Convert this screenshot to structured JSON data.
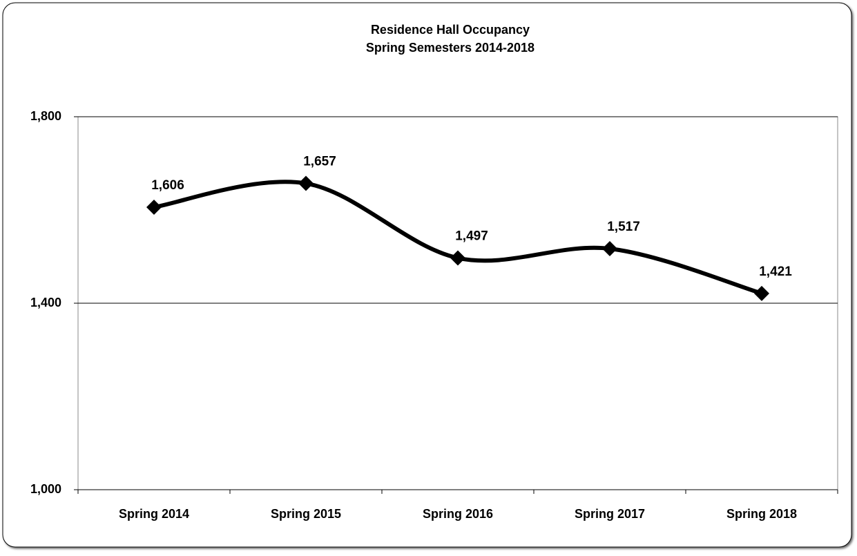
{
  "chart_data": {
    "type": "line",
    "title": "Residence Hall Occupancy",
    "subtitle": "Spring Semesters 2014-2018",
    "categories": [
      "Spring 2014",
      "Spring 2015",
      "Spring 2016",
      "Spring 2017",
      "Spring 2018"
    ],
    "series": [
      {
        "color": "#000000",
        "values": [
          1606,
          1657,
          1497,
          1517,
          1421
        ],
        "value_labels": [
          "1,606",
          "1,657",
          "1,497",
          "1,517",
          "1,421"
        ]
      }
    ],
    "ylim": [
      1000,
      1800
    ],
    "yticks": [
      {
        "value": 1000,
        "label": "1,000"
      },
      {
        "value": 1400,
        "label": "1,400"
      },
      {
        "value": 1800,
        "label": "1,800"
      }
    ],
    "grid": true,
    "smooth": true
  }
}
